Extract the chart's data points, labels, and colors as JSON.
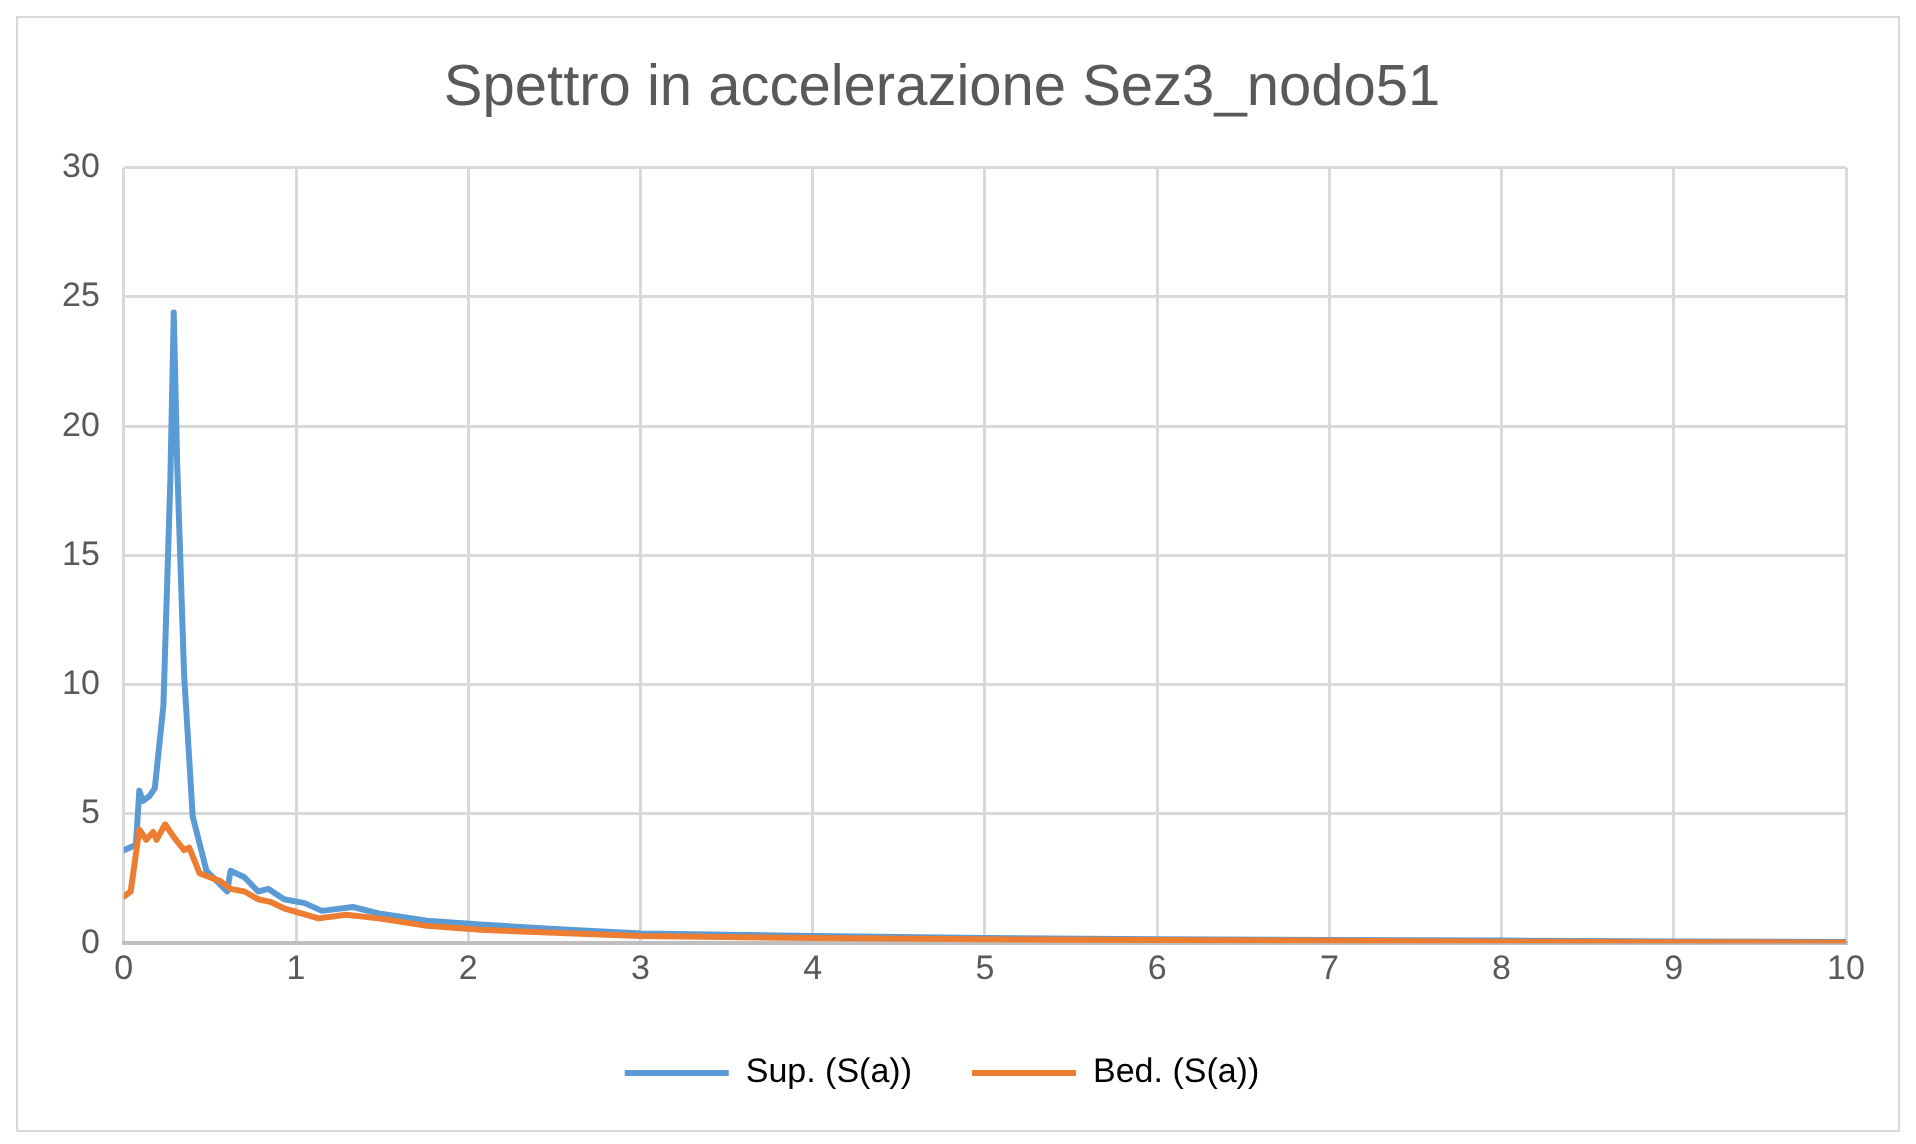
{
  "chart_data": {
    "type": "line",
    "title": "Spettro in accelerazione Sez3_nodo51",
    "xlim": [
      0,
      10
    ],
    "xticks": [
      0,
      1,
      2,
      3,
      4,
      5,
      6,
      7,
      8,
      9,
      10
    ],
    "ylim": [
      0,
      30
    ],
    "yticks": [
      0,
      5,
      10,
      15,
      20,
      25,
      30
    ],
    "grid": true,
    "legend": "bottom",
    "marker": "none",
    "line_style": "solid",
    "series": [
      {
        "name": "Sup. (S(a))",
        "color": "#5b9bd5",
        "x": [
          0,
          0.07,
          0.09,
          0.11,
          0.15,
          0.18,
          0.23,
          0.27,
          0.29,
          0.31,
          0.35,
          0.4,
          0.48,
          0.6,
          0.62,
          0.7,
          0.78,
          0.84,
          0.93,
          1.05,
          1.15,
          1.33,
          1.48,
          1.76,
          2.07,
          2.5,
          3,
          4,
          5,
          6,
          7,
          8,
          9,
          10
        ],
        "values": [
          3.6,
          3.8,
          5.9,
          5.5,
          5.7,
          6.0,
          9.2,
          17.9,
          24.4,
          18.5,
          10.4,
          4.9,
          2.8,
          2.0,
          2.8,
          2.55,
          2.0,
          2.1,
          1.7,
          1.55,
          1.25,
          1.4,
          1.15,
          0.87,
          0.72,
          0.55,
          0.38,
          0.28,
          0.2,
          0.15,
          0.12,
          0.1,
          0.07,
          0.05
        ]
      },
      {
        "name": "Bed. (S(a))",
        "color": "#ed7d31",
        "x": [
          0,
          0.04,
          0.09,
          0.13,
          0.17,
          0.19,
          0.24,
          0.29,
          0.35,
          0.38,
          0.44,
          0.5,
          0.56,
          0.62,
          0.7,
          0.78,
          0.85,
          0.93,
          1.13,
          1.29,
          1.48,
          1.76,
          2.07,
          2.5,
          3,
          4,
          5,
          6,
          7,
          8,
          9,
          10
        ],
        "values": [
          1.8,
          2.0,
          4.4,
          4.0,
          4.3,
          4.0,
          4.6,
          4.1,
          3.6,
          3.7,
          2.7,
          2.55,
          2.4,
          2.1,
          2.0,
          1.7,
          1.6,
          1.35,
          0.96,
          1.1,
          0.96,
          0.67,
          0.52,
          0.4,
          0.28,
          0.2,
          0.15,
          0.12,
          0.09,
          0.06,
          0.04,
          0.02
        ]
      }
    ]
  }
}
